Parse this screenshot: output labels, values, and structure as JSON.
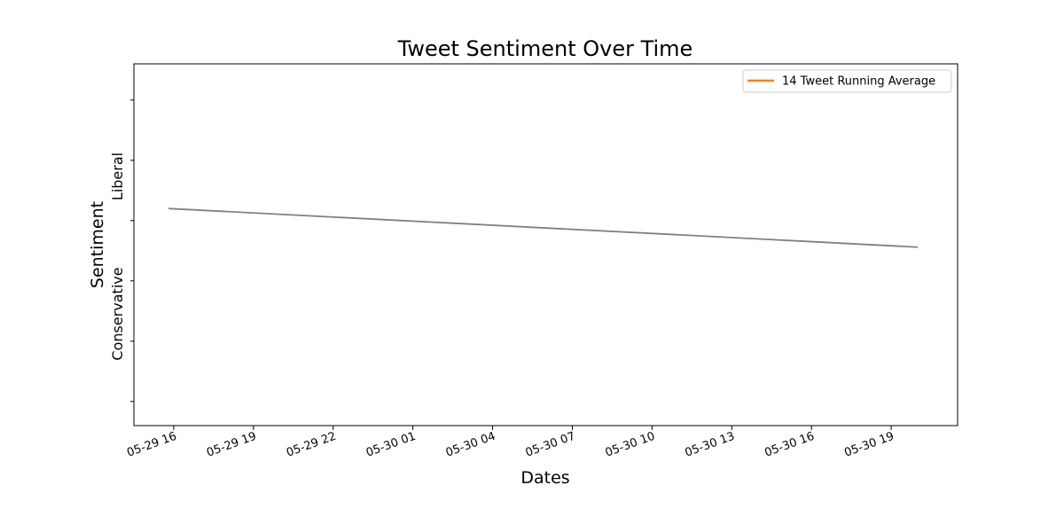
{
  "chart_data": {
    "type": "line",
    "title": "Tweet Sentiment Over Time",
    "xlabel": "Dates",
    "ylabel": "Sentiment",
    "y_category_labels": {
      "upper": "Liberal",
      "lower": "Conservative"
    },
    "x_tick_labels": [
      "05-29 16",
      "05-29 19",
      "05-29 22",
      "05-30 01",
      "05-30 04",
      "05-30 07",
      "05-30 10",
      "05-30 13",
      "05-30 16",
      "05-30 19"
    ],
    "x_ticks_hours": [
      0,
      3,
      6,
      9,
      12,
      15,
      18,
      21,
      24,
      27
    ],
    "xlim_hours": [
      -1.5,
      29.5
    ],
    "ylim": [
      -0.85,
      0.65
    ],
    "y_ticks": [
      -0.75,
      -0.5,
      -0.25,
      0,
      0.25,
      0.5
    ],
    "series": [
      {
        "name": "",
        "color": "#808080",
        "x_hours": [
          -0.2,
          28.0
        ],
        "values": [
          0.05,
          -0.11
        ]
      }
    ],
    "legend": {
      "placement": "top-right",
      "entries": [
        {
          "label": "14 Tweet Running Average",
          "color": "#ff7f0e"
        }
      ]
    },
    "grid": false
  }
}
